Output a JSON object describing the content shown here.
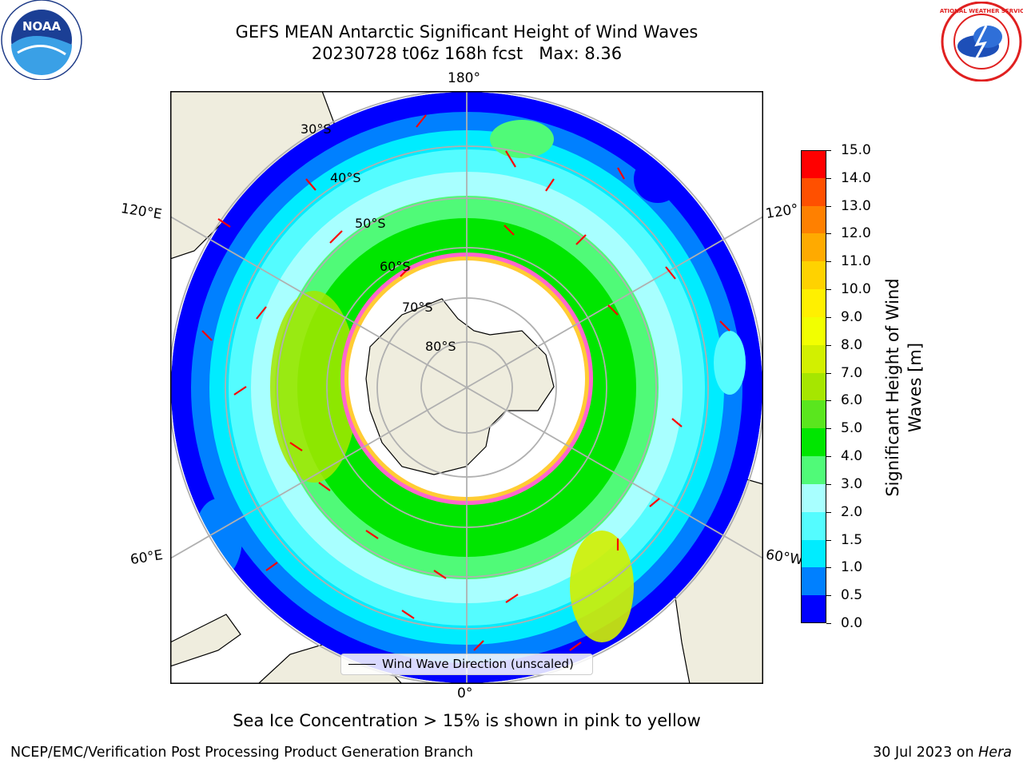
{
  "title": {
    "line1": "GEFS MEAN Antarctic Significant Height of Wind Waves",
    "line2": "20230728 t06z 168h fcst",
    "max": "Max: 8.36"
  },
  "logos": {
    "left": "NOAA",
    "right": "NATIONAL WEATHER SERVICE"
  },
  "map": {
    "projection": "south-polar-stereographic",
    "lon_labels": {
      "top": "180°",
      "bottom": "0°",
      "left_upper": "120°E",
      "left_lower": "60°E",
      "right_upper": "120°",
      "right_lower": "60°W"
    },
    "lat_labels": [
      "30°S",
      "40°S",
      "50°S",
      "60°S",
      "70°S",
      "80°S"
    ],
    "legend": "Wind Wave Direction (unscaled)"
  },
  "colorbar": {
    "label": "Significant Height of Wind Waves [m]",
    "ticks": [
      "0.0",
      "0.5",
      "1.0",
      "1.5",
      "2.0",
      "3.0",
      "4.0",
      "5.0",
      "6.0",
      "7.0",
      "8.0",
      "9.0",
      "10.0",
      "11.0",
      "12.0",
      "13.0",
      "14.0",
      "15.0"
    ],
    "colors": [
      "#0000ff",
      "#0080ff",
      "#00ecff",
      "#54fcff",
      "#a8ffff",
      "#50fa78",
      "#00e600",
      "#5ae61e",
      "#a6e600",
      "#d2f000",
      "#f2ff00",
      "#fff000",
      "#ffd200",
      "#ffaa00",
      "#ff8000",
      "#ff5000",
      "#ff0000"
    ]
  },
  "footnote": "Sea Ice Concentration > 15% is shown in pink to yellow",
  "credit": "NCEP/EMC/Verification Post Processing Product Generation Branch",
  "date": "30 Jul 2023 on",
  "host": "Hera"
}
